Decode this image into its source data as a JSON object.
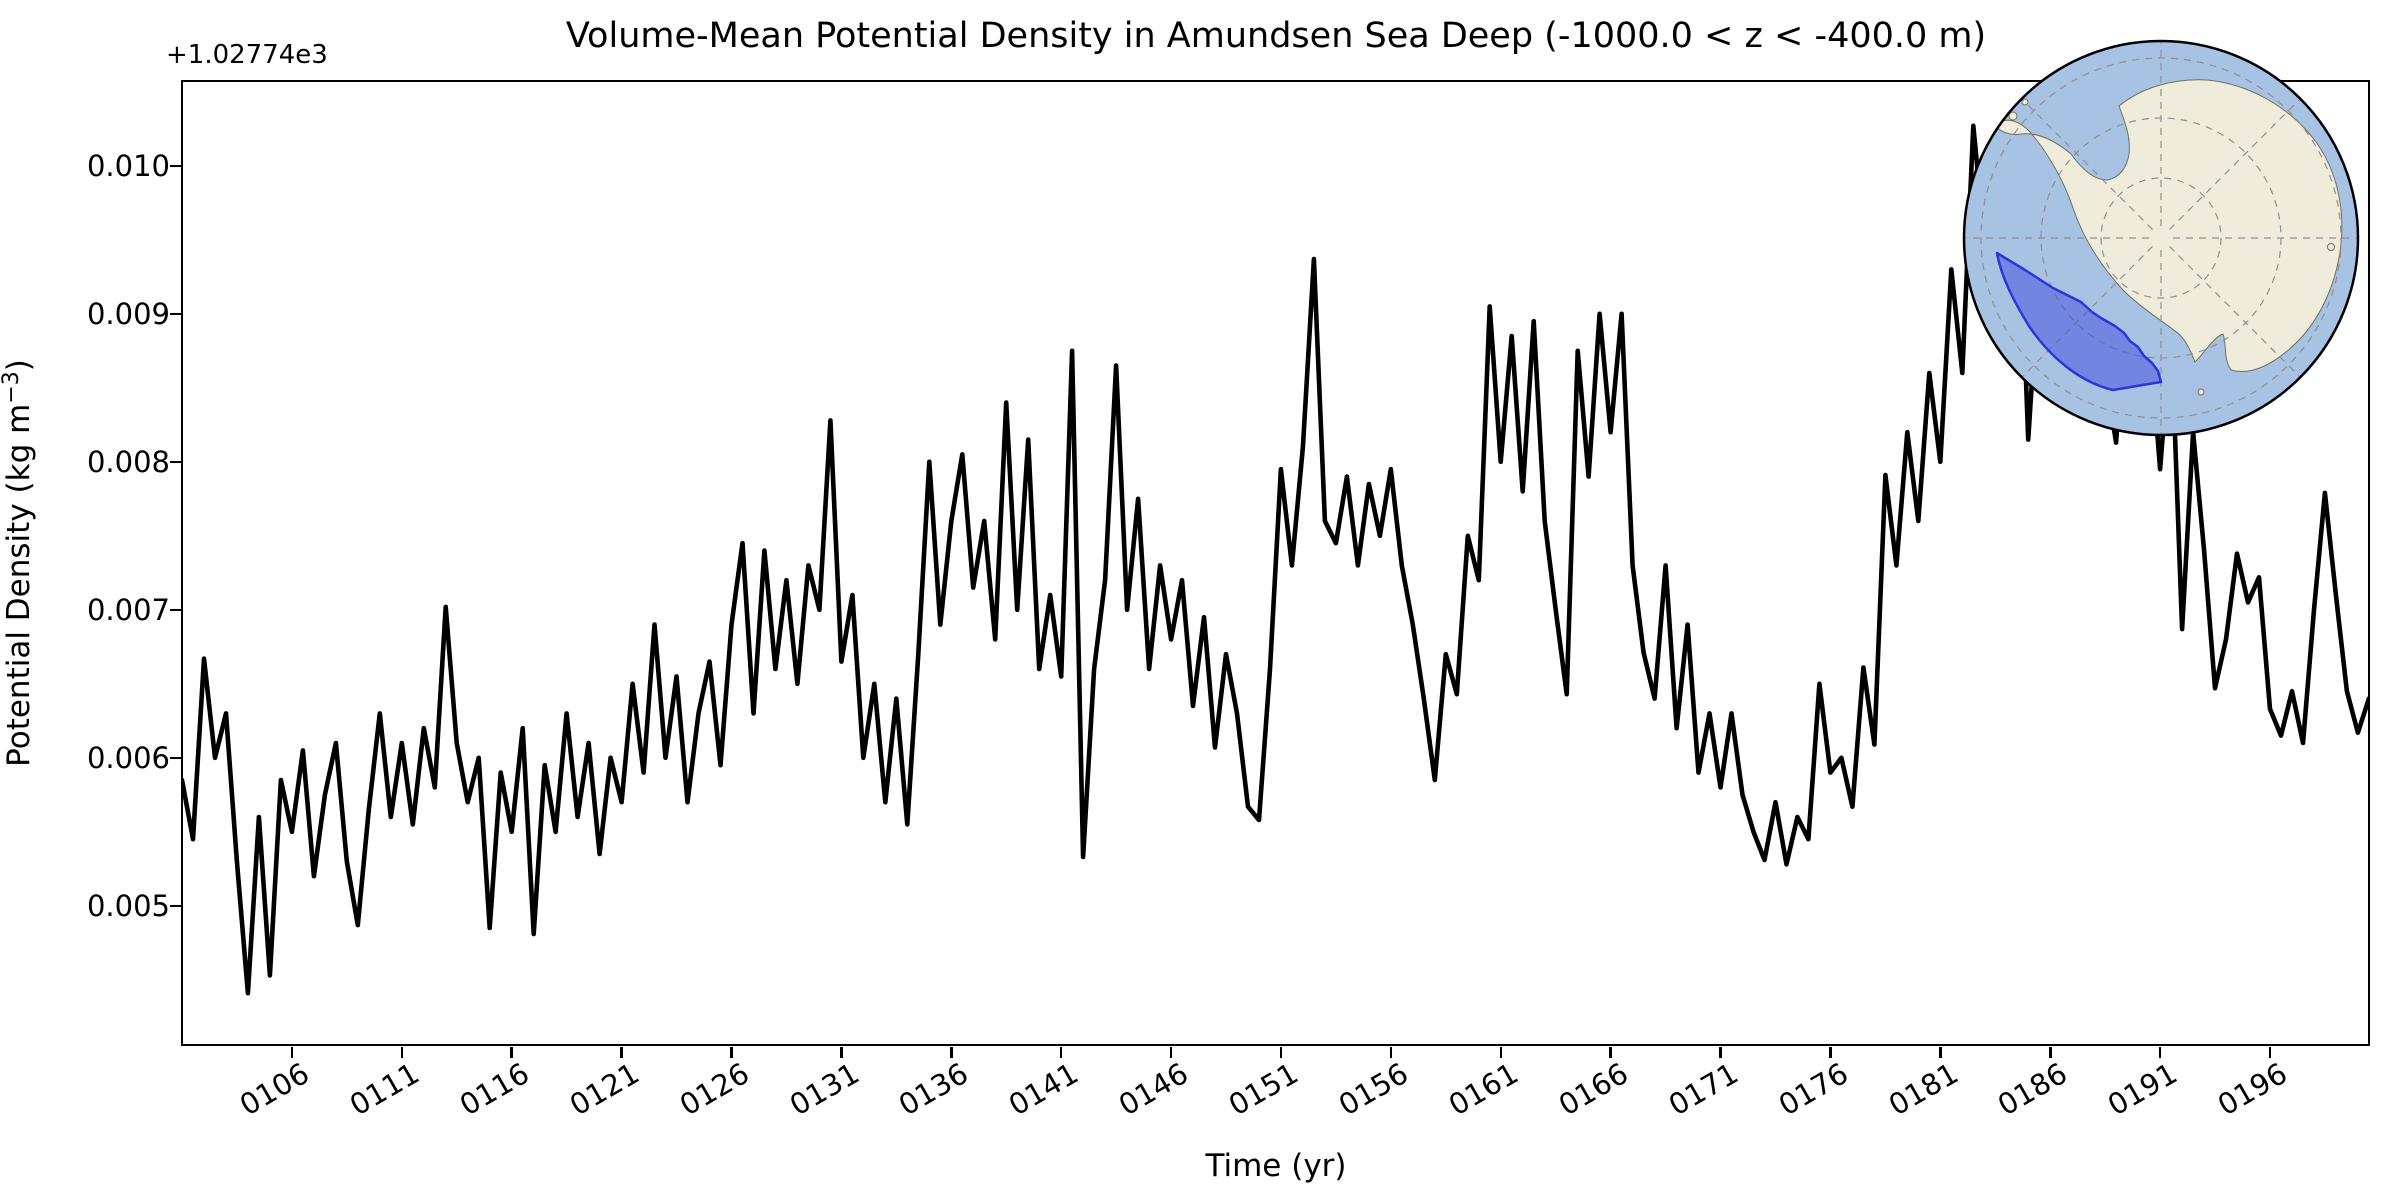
{
  "figure": {
    "title": "Volume-Mean Potential Density in Amundsen Sea Deep (-1000.0 < z < -400.0 m)",
    "xlabel": "Time (yr)",
    "ylabel_prefix": "Potential Density (kg m",
    "ylabel_exponent": "−3",
    "ylabel_suffix": ")",
    "y_offset_text": "+1.02774e3",
    "background_color": "#ffffff",
    "line_color": "#000000"
  },
  "chart_data": {
    "type": "line",
    "title": "Volume-Mean Potential Density in Amundsen Sea Deep (-1000.0 < z < -400.0 m)",
    "xlabel": "Time (yr)",
    "ylabel": "Potential Density (kg m^-3)",
    "y_axis_offset": 1027.74,
    "y_offset_label": "+1.02774e3",
    "grid": false,
    "legend": false,
    "xlim": [
      101.0,
      200.55
    ],
    "ylim_anomaly": [
      0.004053,
      0.010573
    ],
    "x_ticks": {
      "years": [
        106,
        111,
        116,
        121,
        126,
        131,
        136,
        141,
        146,
        151,
        156,
        161,
        166,
        171,
        176,
        181,
        186,
        191,
        196
      ],
      "labels": [
        "0106",
        "0111",
        "0116",
        "0121",
        "0126",
        "0131",
        "0136",
        "0141",
        "0146",
        "0151",
        "0156",
        "0161",
        "0166",
        "0171",
        "0176",
        "0181",
        "0186",
        "0191",
        "0196"
      ],
      "rotation_deg": 30
    },
    "y_ticks": {
      "values_anomaly": [
        0.005,
        0.006,
        0.007,
        0.008,
        0.009,
        0.01
      ],
      "labels": [
        "0.005",
        "0.006",
        "0.007",
        "0.008",
        "0.009",
        "0.010"
      ]
    },
    "series": [
      {
        "name": "volume-mean potential density (anomaly above +1.02774e3 kg m^-3)",
        "color": "#000000",
        "linewidth": 4.6,
        "x_start_yr": 101.0,
        "x_step_yr": 0.5,
        "values_scale": 0.001,
        "values_milli": [
          5.85,
          5.45,
          6.67,
          6.0,
          6.3,
          5.3,
          4.41,
          5.6,
          4.53,
          5.85,
          5.5,
          6.05,
          5.2,
          5.75,
          6.1,
          5.3,
          4.87,
          5.65,
          6.3,
          5.6,
          6.1,
          5.55,
          6.2,
          5.8,
          7.02,
          6.1,
          5.7,
          6.0,
          4.85,
          5.9,
          5.5,
          6.2,
          4.81,
          5.95,
          5.5,
          6.3,
          5.6,
          6.1,
          5.35,
          6.0,
          5.7,
          6.5,
          5.9,
          6.9,
          6.0,
          6.55,
          5.7,
          6.3,
          6.65,
          5.95,
          6.9,
          7.45,
          6.3,
          7.4,
          6.6,
          7.2,
          6.5,
          7.3,
          7.0,
          8.28,
          6.65,
          7.1,
          6.0,
          6.5,
          5.7,
          6.4,
          5.55,
          6.7,
          8.0,
          6.9,
          7.6,
          8.05,
          7.15,
          7.6,
          6.8,
          8.4,
          7.0,
          8.15,
          6.6,
          7.1,
          6.55,
          8.75,
          5.33,
          6.6,
          7.2,
          8.65,
          7.0,
          7.75,
          6.6,
          7.3,
          6.8,
          7.2,
          6.35,
          6.95,
          6.07,
          6.7,
          6.3,
          5.67,
          5.58,
          6.6,
          7.95,
          7.3,
          8.1,
          9.37,
          7.6,
          7.45,
          7.9,
          7.3,
          7.85,
          7.5,
          7.95,
          7.3,
          6.9,
          6.4,
          5.85,
          6.7,
          6.43,
          7.5,
          7.2,
          9.05,
          8.0,
          8.85,
          7.8,
          8.95,
          7.6,
          7.0,
          6.43,
          8.75,
          7.9,
          9.0,
          8.2,
          9.0,
          7.3,
          6.71,
          6.4,
          7.3,
          6.2,
          6.9,
          5.9,
          6.3,
          5.8,
          6.3,
          5.75,
          5.5,
          5.31,
          5.7,
          5.28,
          5.6,
          5.45,
          6.5,
          5.9,
          6.0,
          5.67,
          6.61,
          6.09,
          7.91,
          7.3,
          8.2,
          7.6,
          8.6,
          8.0,
          9.3,
          8.6,
          10.27,
          9.5,
          10.1,
          9.3,
          10.15,
          8.15,
          9.3,
          9.9,
          9.2,
          9.9,
          8.9,
          9.3,
          8.6,
          8.13,
          9.3,
          9.6,
          8.9,
          7.95,
          8.9,
          6.87,
          8.2,
          7.4,
          6.47,
          6.8,
          7.38,
          7.05,
          7.22,
          6.33,
          6.15,
          6.45,
          6.1,
          7.0,
          7.79,
          7.1,
          6.45,
          6.17,
          6.4
        ]
      }
    ]
  },
  "inset_map": {
    "name": "Antarctica south-polar stereographic inset",
    "highlight_region": "Amundsen Sea sector",
    "ocean_color": "#a8c2e4",
    "land_color": "#efecdb",
    "coast_color": "#70705e",
    "graticule_color": "#8f8f8f",
    "region_fill": "#4454de",
    "region_fill_opacity": 0.55,
    "region_edge": "#2b36d8",
    "circle_edge": "#000000"
  }
}
